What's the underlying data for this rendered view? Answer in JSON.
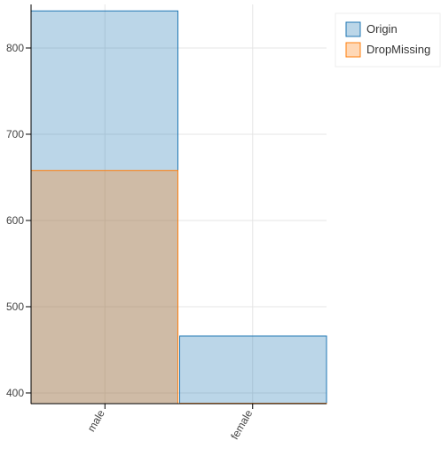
{
  "chart_data": {
    "type": "bar",
    "categories": [
      "male",
      "female"
    ],
    "series": [
      {
        "name": "Origin",
        "color": "#1f77b4",
        "values": [
          843,
          466
        ]
      },
      {
        "name": "DropMissing",
        "color": "#ff7f0e",
        "values": [
          658,
          388
        ]
      }
    ],
    "ylim": [
      387.6,
      850.5
    ],
    "yticks": [
      400,
      500,
      600,
      700,
      800
    ],
    "grid": true,
    "legend": "top-right-outside"
  }
}
